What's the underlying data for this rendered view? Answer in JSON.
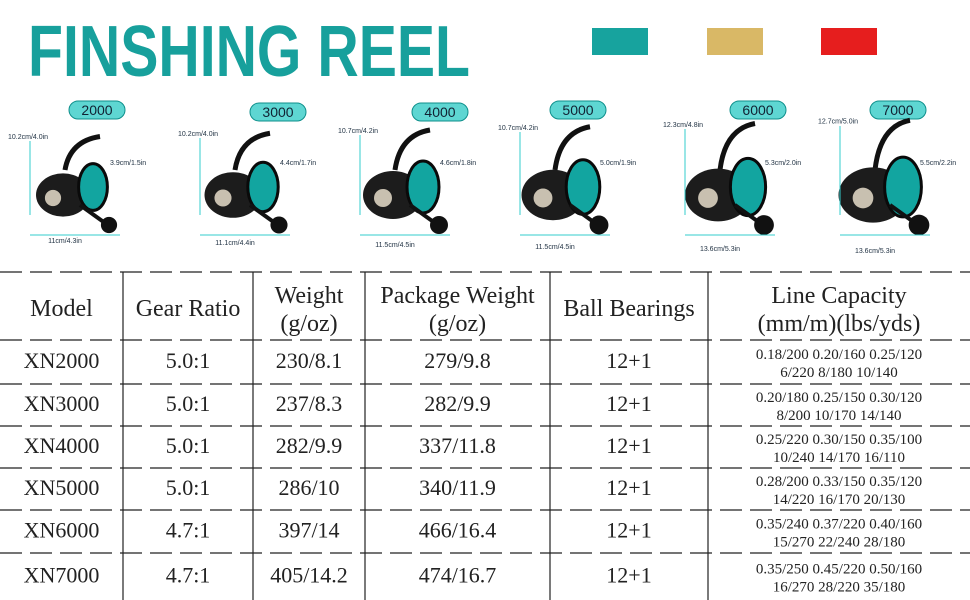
{
  "title": "FINSHING REEL",
  "reels": [
    {
      "model": "2000",
      "height": "10.2cm/4.0in",
      "width": "3.9cm/1.5in",
      "base": "11cm/4.3in"
    },
    {
      "model": "3000",
      "height": "10.2cm/4.0in",
      "width": "4.4cm/1.7in",
      "base": "11.1cm/4.4in"
    },
    {
      "model": "4000",
      "height": "10.7cm/4.2in",
      "width": "4.6cm/1.8in",
      "base": "11.5cm/4.5in"
    },
    {
      "model": "5000",
      "height": "10.7cm/4.2in",
      "width": "5.0cm/1.9in",
      "base": "11.5cm/4.5in"
    },
    {
      "model": "6000",
      "height": "12.3cm/4.8in",
      "width": "5.3cm/2.0in",
      "base": "13.6cm/5.3in"
    },
    {
      "model": "7000",
      "height": "12.7cm/5.0in",
      "width": "5.5cm/2.2in",
      "base": "13.6cm/5.3in"
    }
  ],
  "table": {
    "header": [
      [
        "Model"
      ],
      [
        "Gear Ratio"
      ],
      [
        "Weight",
        "(g/oz)"
      ],
      [
        "Package Weight",
        "(g/oz)"
      ],
      [
        "Ball Bearings"
      ],
      [
        "Line Capacity",
        "(mm/m)(lbs/yds)"
      ]
    ],
    "rows": [
      [
        "XN2000",
        "5.0:1",
        "230/8.1",
        "279/9.8",
        "12+1",
        [
          "0.18/200 0.20/160 0.25/120",
          "6/220 8/180 10/140"
        ]
      ],
      [
        "XN3000",
        "5.0:1",
        "237/8.3",
        "282/9.9",
        "12+1",
        [
          "0.20/180 0.25/150 0.30/120",
          "8/200 10/170 14/140"
        ]
      ],
      [
        "XN4000",
        "5.0:1",
        "282/9.9",
        "337/11.8",
        "12+1",
        [
          "0.25/220 0.30/150 0.35/100",
          "10/240 14/170 16/110"
        ]
      ],
      [
        "XN5000",
        "5.0:1",
        "286/10",
        "340/11.9",
        "12+1",
        [
          "0.28/200 0.33/150 0.35/120",
          "14/220 16/170 20/130"
        ]
      ],
      [
        "XN6000",
        "4.7:1",
        "397/14",
        "466/16.4",
        "12+1",
        [
          "0.35/240 0.37/220 0.40/160",
          "15/270 22/240 28/180"
        ]
      ],
      [
        "XN7000",
        "4.7:1",
        "405/14.2",
        "474/16.7",
        "12+1",
        [
          "0.35/250 0.45/220 0.50/160",
          "16/270 28/220 35/180"
        ]
      ]
    ]
  }
}
